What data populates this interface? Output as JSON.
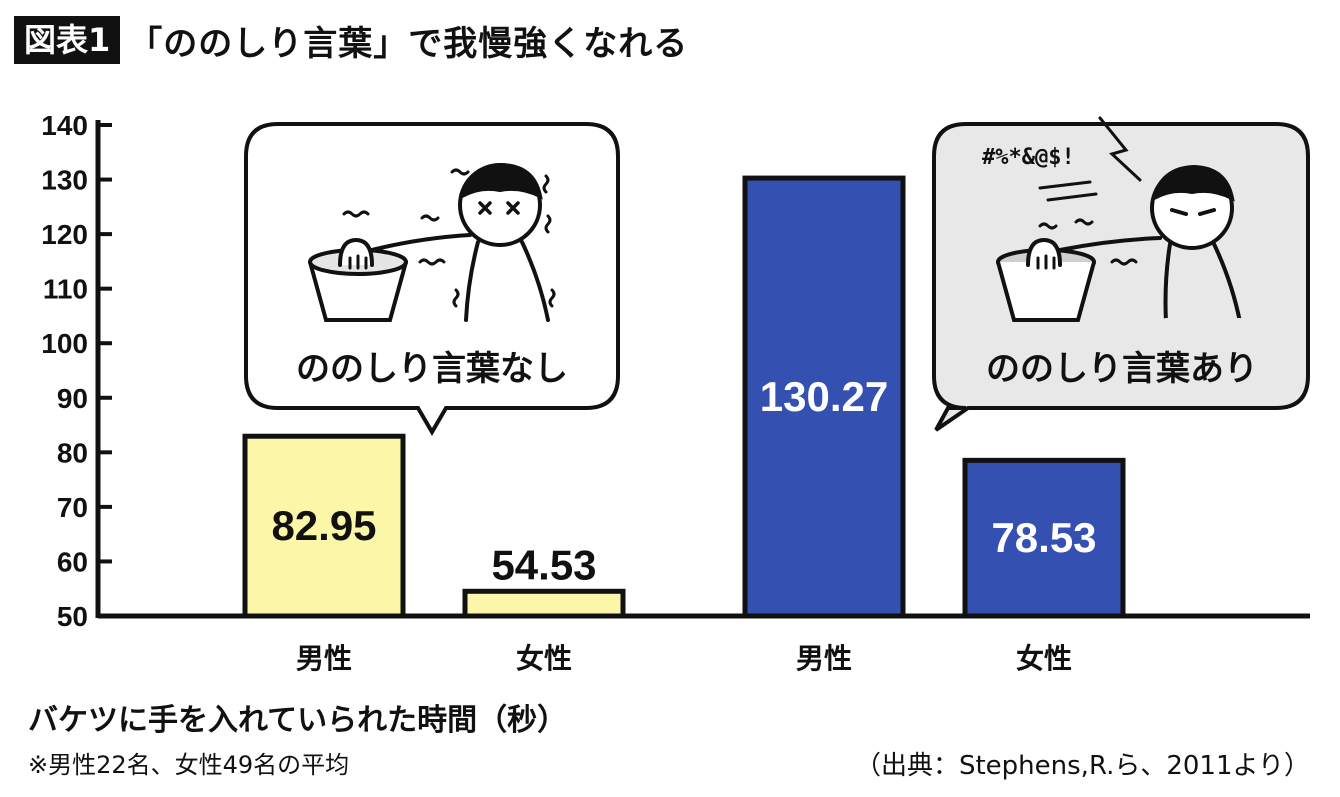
{
  "figure": {
    "badge": "図表1",
    "title": "「ののしり言葉」で我慢強くなれる"
  },
  "bubbles": {
    "left": "ののしり言葉なし",
    "right": "ののしり言葉あり",
    "right_symbols": "#%*&@$!"
  },
  "footer": {
    "xlabel": "バケツに手を入れていられた時間（秒）",
    "note": "※男性22名、女性49名の平均",
    "source": "（出典：Stephens,R.ら、2011より）"
  },
  "colors": {
    "no_swear": "#fcf6a8",
    "swear": "#3450b0",
    "bubble_right_bg": "#e8e8e8"
  },
  "chart_data": {
    "type": "bar",
    "categories": [
      "男性",
      "女性",
      "男性",
      "女性"
    ],
    "groups": [
      "ののしり言葉なし",
      "ののしり言葉なし",
      "ののしり言葉あり",
      "ののしり言葉あり"
    ],
    "values": [
      82.95,
      54.53,
      130.27,
      78.53
    ],
    "value_labels": [
      "82.95",
      "54.53",
      "130.27",
      "78.53"
    ],
    "yticks": [
      50,
      60,
      70,
      80,
      90,
      100,
      110,
      120,
      130,
      140
    ],
    "ylim": [
      50,
      140
    ],
    "xlabel": "バケツに手を入れていられた時間（秒）",
    "grid": false
  }
}
